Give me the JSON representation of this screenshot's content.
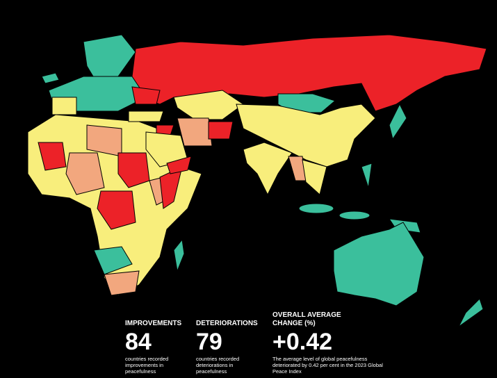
{
  "stats": [
    {
      "heading": "IMPROVEMENTS",
      "value": 84,
      "caption": "countries recorded improvements in peacefulness"
    },
    {
      "heading": "DETERIORATIONS",
      "value": 79,
      "caption": "countries recorded deteriorations in peacefulness"
    },
    {
      "heading": "OVERALL AVERAGE CHANGE (%)",
      "value": "+0.42",
      "caption": "The average level of global peacefulness deteriorated by 0.42 per cent in the 2023 Global Peace Index"
    }
  ]
}
